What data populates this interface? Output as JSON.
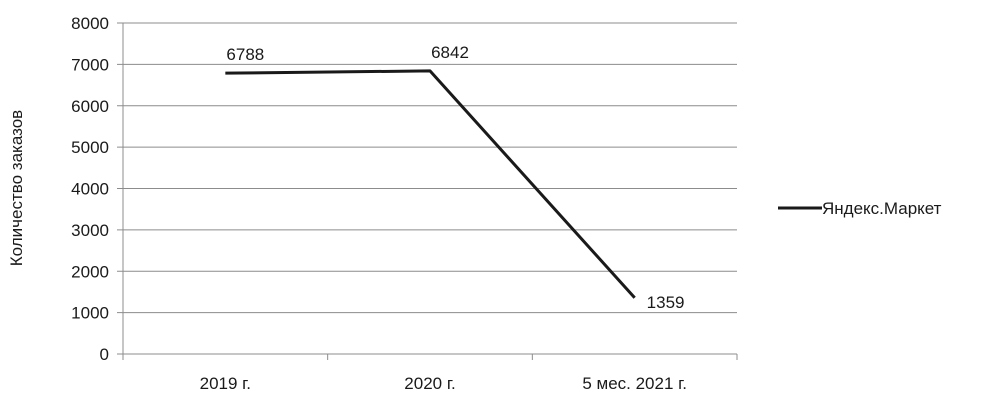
{
  "chart_data": {
    "type": "line",
    "categories": [
      "2019 г.",
      "2020 г.",
      "5 мес. 2021 г."
    ],
    "series": [
      {
        "name": "Яндекс.Маркет",
        "values": [
          6788,
          6842,
          1359
        ],
        "color": "#1a1a1a"
      }
    ],
    "title": "",
    "xlabel": "",
    "ylabel": "Количество заказов",
    "ylim": [
      0,
      8000
    ],
    "yticks": [
      0,
      1000,
      2000,
      3000,
      4000,
      5000,
      6000,
      7000,
      8000
    ],
    "grid": true,
    "legend_position": "right",
    "data_labels": [
      "6788",
      "6842",
      "1359"
    ]
  }
}
